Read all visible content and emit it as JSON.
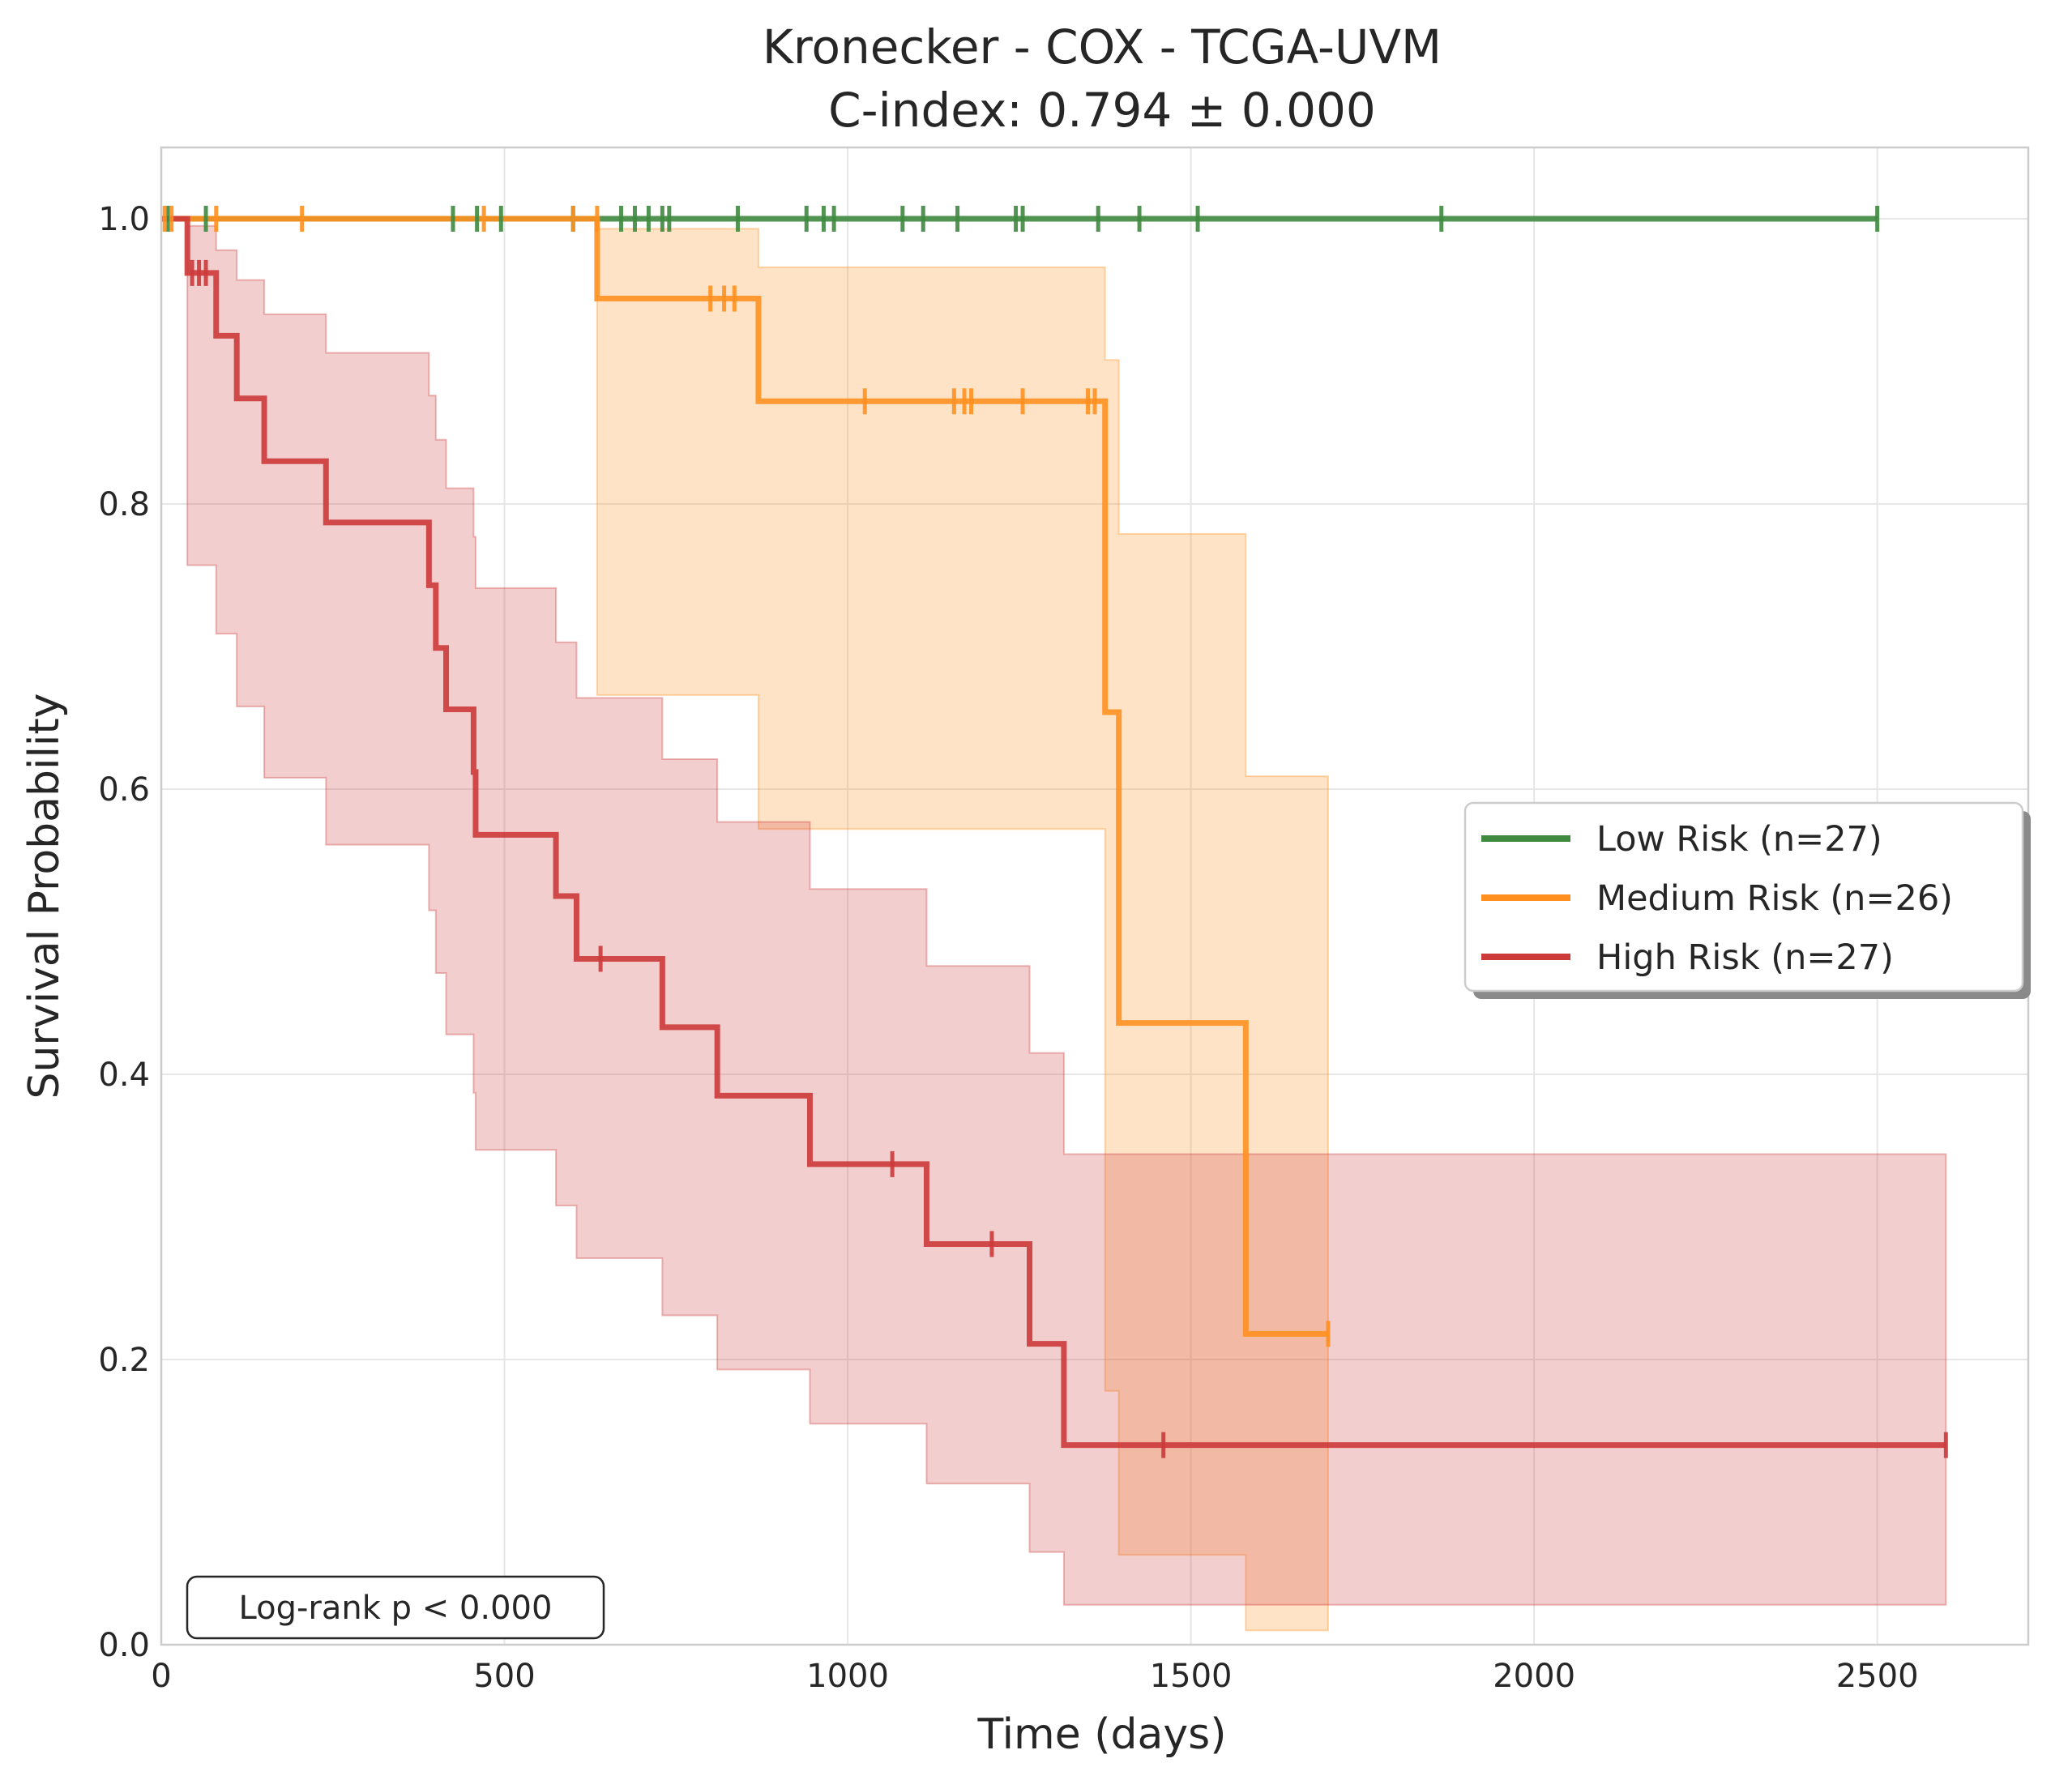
{
  "chart_data": {
    "type": "line",
    "title": "Kronecker - COX - TCGA-UVM",
    "subtitle": "C-index: 0.794 ± 0.000",
    "xlabel": "Time (days)",
    "ylabel": "Survival Probability",
    "xlim": [
      0,
      2720
    ],
    "ylim": [
      0,
      1.05
    ],
    "xticks": [
      0,
      500,
      1000,
      1500,
      2000,
      2500
    ],
    "xtick_labels": [
      "0",
      "500",
      "1000",
      "1500",
      "2000",
      "2500"
    ],
    "yticks": [
      0.0,
      0.2,
      0.4,
      0.6,
      0.8,
      1.0
    ],
    "ytick_labels": [
      "0.0",
      "0.2",
      "0.4",
      "0.6",
      "0.8",
      "1.0"
    ],
    "grid": true,
    "legend_position": "center-right",
    "annotation": "Log-rank p < 0.000",
    "series": [
      {
        "name": "Low Risk (n=27)",
        "color": "#3f8a3f",
        "steps": [
          [
            0,
            1.0
          ],
          [
            2500,
            1.0
          ]
        ],
        "censors": [
          [
            10,
            1.0
          ],
          [
            65,
            1.0
          ],
          [
            425,
            1.0
          ],
          [
            460,
            1.0
          ],
          [
            495,
            1.0
          ],
          [
            600,
            1.0
          ],
          [
            670,
            1.0
          ],
          [
            690,
            1.0
          ],
          [
            710,
            1.0
          ],
          [
            730,
            1.0
          ],
          [
            740,
            1.0
          ],
          [
            840,
            1.0
          ],
          [
            940,
            1.0
          ],
          [
            965,
            1.0
          ],
          [
            980,
            1.0
          ],
          [
            1080,
            1.0
          ],
          [
            1110,
            1.0
          ],
          [
            1160,
            1.0
          ],
          [
            1245,
            1.0
          ],
          [
            1255,
            1.0
          ],
          [
            1365,
            1.0
          ],
          [
            1425,
            1.0
          ],
          [
            1510,
            1.0
          ],
          [
            1865,
            1.0
          ],
          [
            2500,
            1.0
          ]
        ],
        "ci": []
      },
      {
        "name": "Medium Risk (n=26)",
        "color": "#ff9020",
        "steps": [
          [
            0,
            1.0
          ],
          [
            635,
            0.944
          ],
          [
            870,
            0.872
          ],
          [
            1375,
            0.654
          ],
          [
            1395,
            0.436
          ],
          [
            1580,
            0.218
          ],
          [
            1700,
            0.218
          ]
        ],
        "censors": [
          [
            5,
            1.0
          ],
          [
            15,
            1.0
          ],
          [
            80,
            1.0
          ],
          [
            205,
            1.0
          ],
          [
            470,
            1.0
          ],
          [
            600,
            1.0
          ],
          [
            635,
            1.0
          ],
          [
            800,
            0.944
          ],
          [
            820,
            0.944
          ],
          [
            835,
            0.944
          ],
          [
            1025,
            0.872
          ],
          [
            1155,
            0.872
          ],
          [
            1170,
            0.872
          ],
          [
            1180,
            0.872
          ],
          [
            1255,
            0.872
          ],
          [
            1350,
            0.872
          ],
          [
            1360,
            0.872
          ],
          [
            1700,
            0.218
          ]
        ],
        "ci": [
          [
            0,
            1.0,
            1.0
          ],
          [
            635,
            0.666,
            0.993
          ],
          [
            870,
            0.572,
            0.966
          ],
          [
            1375,
            0.178,
            0.901
          ],
          [
            1395,
            0.063,
            0.779
          ],
          [
            1580,
            0.01,
            0.609
          ],
          [
            1700,
            0.01,
            0.609
          ]
        ]
      },
      {
        "name": "High Risk (n=27)",
        "color": "#cc3a3a",
        "steps": [
          [
            0,
            1.0
          ],
          [
            38,
            0.962
          ],
          [
            80,
            0.918
          ],
          [
            110,
            0.874
          ],
          [
            150,
            0.83
          ],
          [
            240,
            0.787
          ],
          [
            390,
            0.743
          ],
          [
            400,
            0.699
          ],
          [
            415,
            0.656
          ],
          [
            455,
            0.612
          ],
          [
            458,
            0.568
          ],
          [
            575,
            0.525
          ],
          [
            605,
            0.481
          ],
          [
            730,
            0.433
          ],
          [
            810,
            0.385
          ],
          [
            945,
            0.337
          ],
          [
            1115,
            0.281
          ],
          [
            1265,
            0.211
          ],
          [
            1315,
            0.14
          ],
          [
            2600,
            0.14
          ]
        ],
        "censors": [
          [
            45,
            0.962
          ],
          [
            55,
            0.962
          ],
          [
            65,
            0.962
          ],
          [
            640,
            0.481
          ],
          [
            1065,
            0.337
          ],
          [
            1210,
            0.281
          ],
          [
            1460,
            0.14
          ],
          [
            2600,
            0.14
          ]
        ],
        "ci": [
          [
            0,
            1.0,
            1.0
          ],
          [
            38,
            0.757,
            0.995
          ],
          [
            80,
            0.709,
            0.978
          ],
          [
            110,
            0.658,
            0.957
          ],
          [
            150,
            0.608,
            0.933
          ],
          [
            240,
            0.561,
            0.906
          ],
          [
            390,
            0.515,
            0.876
          ],
          [
            400,
            0.471,
            0.845
          ],
          [
            415,
            0.428,
            0.811
          ],
          [
            455,
            0.387,
            0.777
          ],
          [
            458,
            0.347,
            0.741
          ],
          [
            575,
            0.308,
            0.703
          ],
          [
            605,
            0.271,
            0.664
          ],
          [
            730,
            0.231,
            0.621
          ],
          [
            810,
            0.193,
            0.577
          ],
          [
            945,
            0.155,
            0.53
          ],
          [
            1115,
            0.113,
            0.476
          ],
          [
            1265,
            0.065,
            0.415
          ],
          [
            1315,
            0.028,
            0.344
          ],
          [
            2600,
            0.028,
            0.344
          ]
        ]
      }
    ]
  }
}
